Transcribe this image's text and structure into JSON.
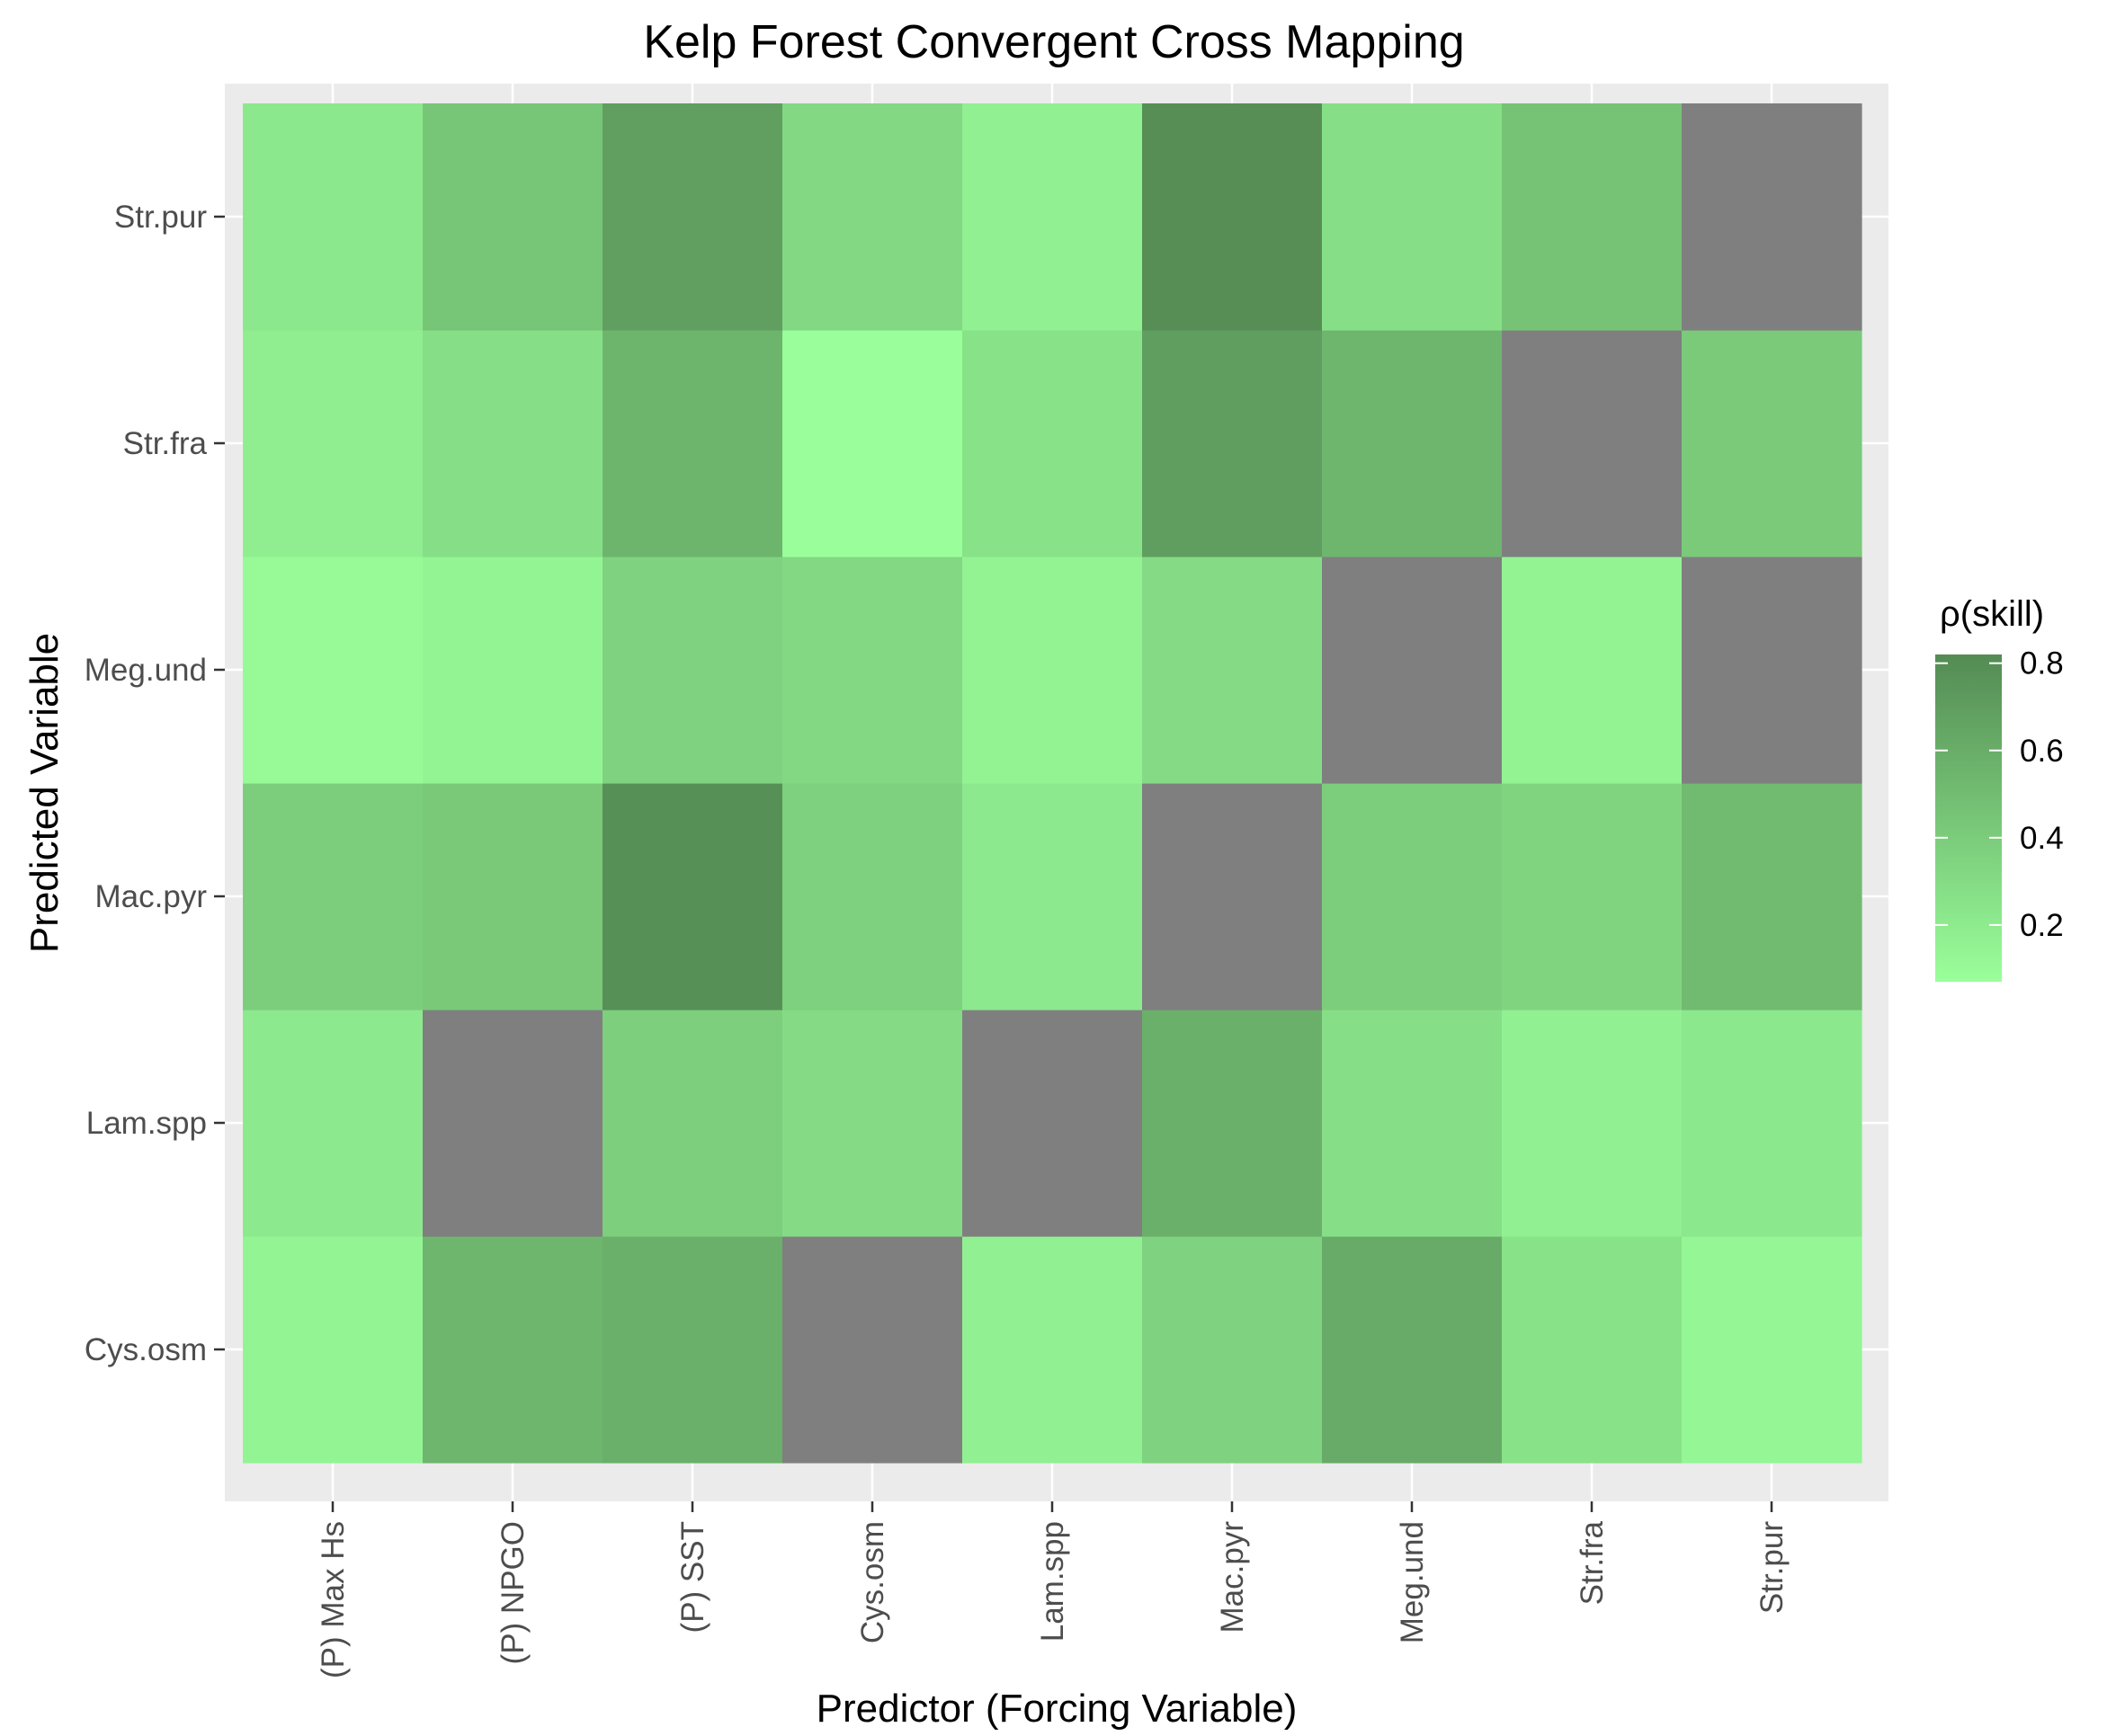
{
  "chart_data": {
    "type": "heatmap",
    "title": "Kelp Forest Convergent Cross Mapping",
    "xlabel": "Predictor (Forcing Variable)",
    "ylabel": "Predicted Variable",
    "x_categories": [
      "(P) Max Hs",
      "(P) NPGO",
      "(P) SST",
      "Cys.osm",
      "Lam.spp",
      "Mac.pyr",
      "Meg.und",
      "Str.fra",
      "Str.pur"
    ],
    "y_categories": [
      "Cys.osm",
      "Lam.spp",
      "Mac.pyr",
      "Meg.und",
      "Str.fra",
      "Str.pur"
    ],
    "values": [
      [
        0.14,
        0.54,
        0.58,
        null,
        0.17,
        0.36,
        0.61,
        0.26,
        0.13
      ],
      [
        0.21,
        null,
        0.38,
        0.3,
        null,
        0.58,
        0.28,
        0.17,
        0.22
      ],
      [
        0.39,
        0.42,
        0.79,
        0.37,
        0.21,
        null,
        0.39,
        0.35,
        0.51
      ],
      [
        0.1,
        0.14,
        0.36,
        0.32,
        0.15,
        0.3,
        null,
        0.15,
        null
      ],
      [
        0.18,
        0.28,
        0.55,
        0.07,
        0.26,
        0.7,
        0.54,
        null,
        0.41
      ],
      [
        0.22,
        0.44,
        0.69,
        0.32,
        0.17,
        0.8,
        0.28,
        0.46,
        null
      ]
    ],
    "missing_color": "#7f7f7f",
    "color_low": "#9aff9a",
    "color_high": "#548b54",
    "color_range": [
      0.07,
      0.82
    ],
    "legend": {
      "title": "ρ(skill)",
      "ticks": [
        0.2,
        0.4,
        0.6,
        0.8
      ],
      "tick_labels": [
        "0.2",
        "0.4",
        "0.6",
        "0.8"
      ],
      "position": "right"
    },
    "panel_background": "#ebebeb",
    "gridline_color": "#ffffff",
    "grid": true
  }
}
